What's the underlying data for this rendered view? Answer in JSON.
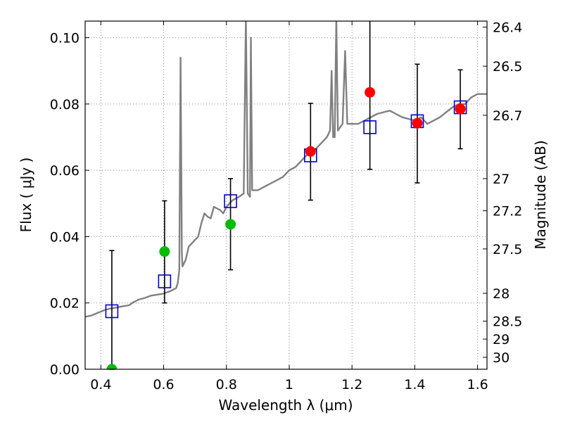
{
  "chart_data": {
    "type": "scatter",
    "xlabel": "Wavelength  λ (μm)",
    "ylabel": "Flux  ( μJy )",
    "y2label": "Magnitude (AB)",
    "xlim": [
      0.35,
      1.63
    ],
    "ylim": [
      0.0,
      0.105
    ],
    "grid": true,
    "x_ticks": [
      0.4,
      0.6,
      0.8,
      1.0,
      1.2,
      1.4,
      1.6
    ],
    "x_tick_labels": [
      "0.4",
      "0.6",
      "0.8",
      "1",
      "1.2",
      "1.4",
      "1.6"
    ],
    "y_ticks": [
      0.0,
      0.02,
      0.04,
      0.06,
      0.08,
      0.1
    ],
    "y_tick_labels": [
      "0.00",
      "0.02",
      "0.04",
      "0.06",
      "0.08",
      "0.10"
    ],
    "y2_ticks": [
      {
        "label": "26.4",
        "flux": 0.1032
      },
      {
        "label": "26.5",
        "flux": 0.0914
      },
      {
        "label": "26.7",
        "flux": 0.0766
      },
      {
        "label": "27",
        "flux": 0.0575
      },
      {
        "label": "27.2",
        "flux": 0.0478
      },
      {
        "label": "27.5",
        "flux": 0.0363
      },
      {
        "label": "28",
        "flux": 0.0229
      },
      {
        "label": "28.5",
        "flux": 0.0145
      },
      {
        "label": "29",
        "flux": 0.0091
      },
      {
        "label": "30",
        "flux": 0.0036
      }
    ],
    "colors": {
      "spectrum": "#808080",
      "model": "#0000cc",
      "red_points": "#ff0000",
      "green_points": "#00bb00",
      "errorbar": "#000000",
      "grid": "#888888"
    },
    "series": [
      {
        "kind": "line",
        "points": [
          [
            0.35,
            0.0158
          ],
          [
            0.37,
            0.0162
          ],
          [
            0.39,
            0.017
          ],
          [
            0.41,
            0.0178
          ],
          [
            0.43,
            0.0183
          ],
          [
            0.45,
            0.0186
          ],
          [
            0.47,
            0.019
          ],
          [
            0.49,
            0.0193
          ],
          [
            0.5,
            0.02
          ],
          [
            0.52,
            0.021
          ],
          [
            0.54,
            0.0215
          ],
          [
            0.56,
            0.0222
          ],
          [
            0.58,
            0.0225
          ],
          [
            0.6,
            0.0228
          ],
          [
            0.61,
            0.0232
          ],
          [
            0.62,
            0.0235
          ],
          [
            0.63,
            0.024
          ],
          [
            0.64,
            0.0245
          ],
          [
            0.645,
            0.026
          ],
          [
            0.65,
            0.03
          ],
          [
            0.654,
            0.094
          ],
          [
            0.658,
            0.035
          ],
          [
            0.66,
            0.031
          ],
          [
            0.67,
            0.033
          ],
          [
            0.68,
            0.037
          ],
          [
            0.69,
            0.038
          ],
          [
            0.7,
            0.039
          ],
          [
            0.71,
            0.04
          ],
          [
            0.72,
            0.044
          ],
          [
            0.73,
            0.047
          ],
          [
            0.74,
            0.046
          ],
          [
            0.75,
            0.0455
          ],
          [
            0.76,
            0.049
          ],
          [
            0.78,
            0.048
          ],
          [
            0.79,
            0.047
          ],
          [
            0.8,
            0.049
          ],
          [
            0.82,
            0.051
          ],
          [
            0.84,
            0.052
          ],
          [
            0.855,
            0.053
          ],
          [
            0.862,
            0.11
          ],
          [
            0.868,
            0.053
          ],
          [
            0.875,
            0.052
          ],
          [
            0.878,
            0.1
          ],
          [
            0.882,
            0.054
          ],
          [
            0.9,
            0.054
          ],
          [
            0.92,
            0.055
          ],
          [
            0.94,
            0.056
          ],
          [
            0.96,
            0.057
          ],
          [
            0.98,
            0.058
          ],
          [
            1.0,
            0.06
          ],
          [
            1.02,
            0.061
          ],
          [
            1.04,
            0.063
          ],
          [
            1.06,
            0.065
          ],
          [
            1.08,
            0.066
          ],
          [
            1.1,
            0.068
          ],
          [
            1.12,
            0.07
          ],
          [
            1.13,
            0.072
          ],
          [
            1.135,
            0.09
          ],
          [
            1.14,
            0.07
          ],
          [
            1.145,
            0.07
          ],
          [
            1.15,
            0.11
          ],
          [
            1.155,
            0.072
          ],
          [
            1.17,
            0.074
          ],
          [
            1.178,
            0.096
          ],
          [
            1.185,
            0.074
          ],
          [
            1.2,
            0.074
          ],
          [
            1.22,
            0.074
          ],
          [
            1.24,
            0.075
          ],
          [
            1.26,
            0.076
          ],
          [
            1.28,
            0.077
          ],
          [
            1.3,
            0.0775
          ],
          [
            1.32,
            0.078
          ],
          [
            1.34,
            0.077
          ],
          [
            1.36,
            0.076
          ],
          [
            1.38,
            0.0755
          ],
          [
            1.4,
            0.075
          ],
          [
            1.42,
            0.076
          ],
          [
            1.44,
            0.074
          ],
          [
            1.46,
            0.075
          ],
          [
            1.48,
            0.076
          ],
          [
            1.5,
            0.0775
          ],
          [
            1.52,
            0.079
          ],
          [
            1.54,
            0.08
          ],
          [
            1.56,
            0.08
          ],
          [
            1.58,
            0.082
          ],
          [
            1.6,
            0.083
          ],
          [
            1.63,
            0.083
          ]
        ]
      },
      {
        "kind": "model_squares",
        "points": [
          [
            0.435,
            0.0175
          ],
          [
            0.603,
            0.0265
          ],
          [
            0.813,
            0.0507
          ],
          [
            1.068,
            0.0645
          ],
          [
            1.257,
            0.073
          ],
          [
            1.408,
            0.0748
          ],
          [
            1.545,
            0.079
          ]
        ]
      },
      {
        "kind": "red_points",
        "points": [
          [
            1.068,
            0.0657
          ],
          [
            1.257,
            0.0835
          ],
          [
            1.408,
            0.0742
          ],
          [
            1.545,
            0.0785
          ]
        ]
      },
      {
        "kind": "green_points",
        "points": [
          [
            0.435,
            0.0
          ],
          [
            0.603,
            0.0355
          ],
          [
            0.813,
            0.0437
          ]
        ]
      },
      {
        "kind": "errorbars",
        "points": [
          {
            "x": 0.435,
            "lo": 0.0,
            "hi": 0.0358
          },
          {
            "x": 0.603,
            "lo": 0.02,
            "hi": 0.0508
          },
          {
            "x": 0.813,
            "lo": 0.03,
            "hi": 0.0575
          },
          {
            "x": 1.068,
            "lo": 0.051,
            "hi": 0.0802
          },
          {
            "x": 1.257,
            "lo": 0.0603,
            "hi": 0.106
          },
          {
            "x": 1.408,
            "lo": 0.0562,
            "hi": 0.092
          },
          {
            "x": 1.545,
            "lo": 0.0665,
            "hi": 0.0903
          }
        ]
      }
    ]
  }
}
